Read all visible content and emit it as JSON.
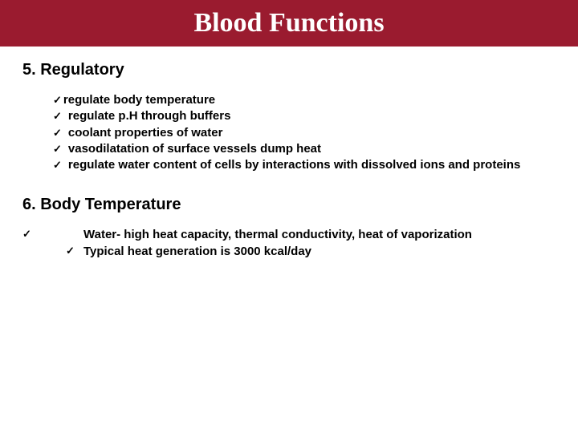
{
  "colors": {
    "header_bg": "#9a1b2f",
    "header_text": "#ffffff",
    "body_text": "#000000",
    "page_bg": "#ffffff"
  },
  "header": {
    "title": "Blood Functions",
    "title_fontsize_pt": 34,
    "title_weight": "bold"
  },
  "section5": {
    "heading": "5. Regulatory",
    "heading_fontsize_pt": 20,
    "bullet_mark": "✓",
    "item_fontsize_pt": 15,
    "items": [
      "regulate body temperature",
      "regulate p.H through buffers",
      "coolant properties of water",
      "vasodilatation of surface vessels dump heat",
      "regulate water content of cells by interactions with dissolved ions and proteins"
    ]
  },
  "section6": {
    "heading": "6. Body Temperature",
    "heading_fontsize_pt": 20,
    "bullet_mark": "✓",
    "item_fontsize_pt": 15,
    "outer_check_present": true,
    "items": [
      "Water- high heat capacity, thermal conductivity, heat of vaporization",
      "Typical heat generation is 3000 kcal/day"
    ]
  }
}
